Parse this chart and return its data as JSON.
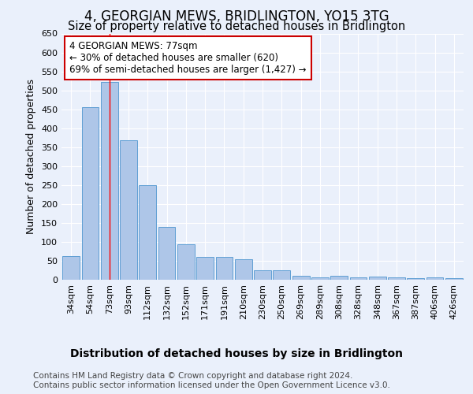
{
  "title": "4, GEORGIAN MEWS, BRIDLINGTON, YO15 3TG",
  "subtitle": "Size of property relative to detached houses in Bridlington",
  "xlabel": "Distribution of detached houses by size in Bridlington",
  "ylabel": "Number of detached properties",
  "footer_line1": "Contains HM Land Registry data © Crown copyright and database right 2024.",
  "footer_line2": "Contains public sector information licensed under the Open Government Licence v3.0.",
  "categories": [
    "34sqm",
    "54sqm",
    "73sqm",
    "93sqm",
    "112sqm",
    "132sqm",
    "152sqm",
    "171sqm",
    "191sqm",
    "210sqm",
    "230sqm",
    "250sqm",
    "269sqm",
    "289sqm",
    "308sqm",
    "328sqm",
    "348sqm",
    "367sqm",
    "387sqm",
    "406sqm",
    "426sqm"
  ],
  "values": [
    63,
    455,
    523,
    368,
    249,
    140,
    93,
    61,
    60,
    55,
    25,
    25,
    10,
    7,
    11,
    7,
    8,
    7,
    5,
    6,
    5
  ],
  "bar_color": "#aec6e8",
  "bar_edge_color": "#5f9fd4",
  "ylim": [
    0,
    650
  ],
  "yticks": [
    0,
    50,
    100,
    150,
    200,
    250,
    300,
    350,
    400,
    450,
    500,
    550,
    600,
    650
  ],
  "red_line_x": 2,
  "annotation_text_line1": "4 GEORGIAN MEWS: 77sqm",
  "annotation_text_line2": "← 30% of detached houses are smaller (620)",
  "annotation_text_line3": "69% of semi-detached houses are larger (1,427) →",
  "annotation_box_color": "#ffffff",
  "annotation_box_edge_color": "#cc0000",
  "background_color": "#eaf0fb",
  "grid_color": "#ffffff",
  "title_fontsize": 12,
  "subtitle_fontsize": 10.5,
  "ylabel_fontsize": 9,
  "xlabel_fontsize": 10,
  "tick_fontsize": 8,
  "annotation_fontsize": 8.5,
  "footer_fontsize": 7.5
}
